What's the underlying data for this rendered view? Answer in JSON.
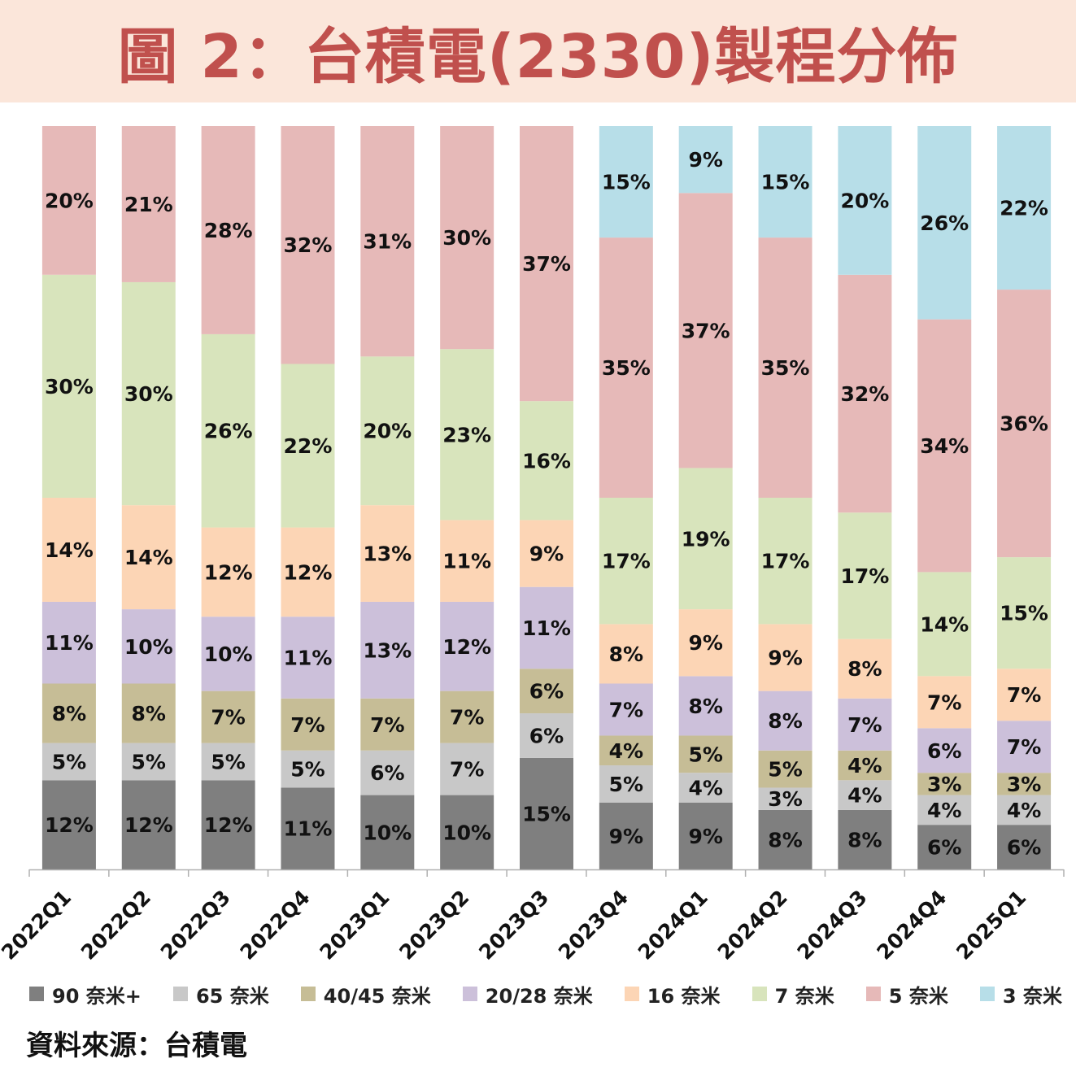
{
  "header": {
    "title": "圖 2：台積電(2330)製程分佈"
  },
  "source_note": "資料來源：台積電",
  "chart_data": {
    "type": "bar",
    "stacked": true,
    "percent_stacked": true,
    "title": "圖 2：台積電(2330)製程分佈",
    "xlabel": "",
    "ylabel": "",
    "ylim": [
      0,
      100
    ],
    "grid": false,
    "legend_position": "bottom",
    "categories": [
      "2022Q1",
      "2022Q2",
      "2022Q3",
      "2022Q4",
      "2023Q1",
      "2023Q2",
      "2023Q3",
      "2023Q4",
      "2024Q1",
      "2024Q2",
      "2024Q3",
      "2024Q4",
      "2025Q1"
    ],
    "series": [
      {
        "name": "90 奈米+",
        "color": "#7f7f7f",
        "values": [
          12,
          12,
          12,
          11,
          10,
          10,
          15,
          9,
          9,
          8,
          8,
          6,
          6
        ]
      },
      {
        "name": "65 奈米",
        "color": "#c8c8c8",
        "values": [
          5,
          5,
          5,
          5,
          6,
          7,
          6,
          5,
          4,
          3,
          4,
          4,
          4
        ]
      },
      {
        "name": "40/45 奈米",
        "color": "#c6bd96",
        "values": [
          8,
          8,
          7,
          7,
          7,
          7,
          6,
          4,
          5,
          5,
          4,
          3,
          3
        ]
      },
      {
        "name": "20/28 奈米",
        "color": "#ccc0da",
        "values": [
          11,
          10,
          10,
          11,
          13,
          12,
          11,
          7,
          8,
          8,
          7,
          6,
          7
        ]
      },
      {
        "name": "16 奈米",
        "color": "#fcd5b5",
        "values": [
          14,
          14,
          12,
          12,
          13,
          11,
          9,
          8,
          9,
          9,
          8,
          7,
          7
        ]
      },
      {
        "name": "7 奈米",
        "color": "#d8e4bc",
        "values": [
          30,
          30,
          26,
          22,
          20,
          23,
          16,
          17,
          19,
          17,
          17,
          14,
          15
        ]
      },
      {
        "name": "5 奈米",
        "color": "#e6b9b8",
        "values": [
          20,
          21,
          28,
          32,
          31,
          30,
          37,
          35,
          37,
          35,
          32,
          34,
          36
        ]
      },
      {
        "name": "3 奈米",
        "color": "#b7dee8",
        "values": [
          0,
          0,
          0,
          0,
          0,
          0,
          0,
          15,
          9,
          15,
          20,
          26,
          22
        ]
      }
    ]
  }
}
